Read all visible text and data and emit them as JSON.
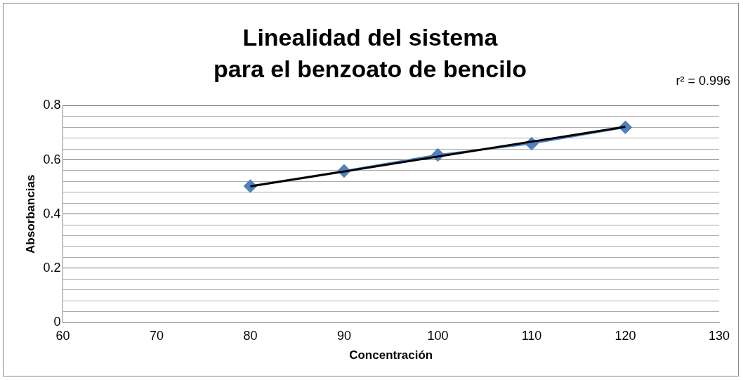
{
  "chart_data": {
    "type": "line",
    "title": "Linealidad del sistema\npara el benzoato de bencilo",
    "xlabel": "Concentración",
    "ylabel": "Absorbancias",
    "annotations": [
      "r² = 0.996"
    ],
    "x": [
      80,
      90,
      100,
      110,
      120
    ],
    "series": [
      {
        "color": "#4f81bd",
        "values": [
          0.503,
          0.559,
          0.618,
          0.66,
          0.72
        ]
      },
      {
        "type": "line",
        "color": "#000000",
        "x": [
          80,
          120
        ],
        "values": [
          0.502,
          0.722
        ],
        "marker": "none"
      }
    ],
    "xlim": [
      60,
      130
    ],
    "xticks": [
      60,
      70,
      80,
      90,
      100,
      110,
      120,
      130
    ],
    "ylim": [
      0,
      0.8
    ],
    "yticks": [
      0,
      {
        "value": 0.04,
        "label": null
      },
      {
        "value": 0.08,
        "label": null
      },
      {
        "value": 0.12,
        "label": null
      },
      {
        "value": 0.16,
        "label": null
      },
      0.2,
      {
        "value": 0.24,
        "label": null
      },
      {
        "value": 0.28,
        "label": null
      },
      {
        "value": 0.32,
        "label": null
      },
      {
        "value": 0.36,
        "label": null
      },
      0.4,
      {
        "value": 0.44,
        "label": null
      },
      {
        "value": 0.48,
        "label": null
      },
      {
        "value": 0.52,
        "label": null
      },
      {
        "value": 0.56,
        "label": null
      },
      0.6,
      {
        "value": 0.64,
        "label": null
      },
      {
        "value": 0.68,
        "label": null
      },
      {
        "value": 0.72,
        "label": null
      },
      {
        "value": 0.76,
        "label": null
      },
      0.8
    ],
    "grid": "y",
    "legend": false,
    "marker": "diamond",
    "line_style": "solid"
  }
}
